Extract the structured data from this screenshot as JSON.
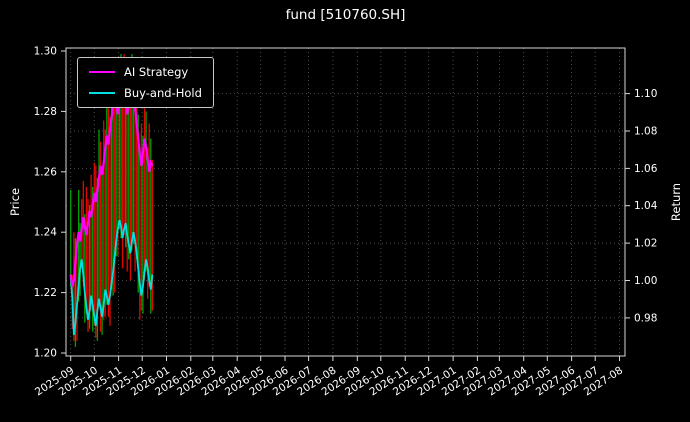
{
  "colors": {
    "background": "#000000",
    "text": "#ffffff",
    "grid": "#5f5f5f",
    "spine": "#d9d9d9",
    "ai_strategy": "#ff00ff",
    "buy_and_hold": "#00e0e0",
    "candle_up": "#00a000",
    "candle_down": "#e10600"
  },
  "chart_data": {
    "type": "line",
    "title": "fund [510760.SH]",
    "xlabel": "",
    "ylabel_left": "Price",
    "ylabel_right": "Return",
    "grid": true,
    "legend_position": "upper left",
    "axes": {
      "left": {
        "label": "Price",
        "ticks": [
          1.2,
          1.22,
          1.24,
          1.26,
          1.28,
          1.3
        ],
        "lim": [
          1.199,
          1.301
        ]
      },
      "right": {
        "label": "Return",
        "ticks": [
          0.98,
          1.0,
          1.02,
          1.04,
          1.06,
          1.08,
          1.1
        ],
        "lim": [
          0.9596,
          1.1244
        ]
      },
      "x": {
        "tick_labels": [
          "2025-09",
          "2025-10",
          "2025-11",
          "2025-12",
          "2026-01",
          "2026-02",
          "2026-03",
          "2026-04",
          "2026-05",
          "2026-06",
          "2026-07",
          "2026-08",
          "2026-09",
          "2026-10",
          "2026-11",
          "2026-12",
          "2027-01",
          "2027-02",
          "2027-03",
          "2027-04",
          "2027-05",
          "2027-06",
          "2027-07",
          "2027-08"
        ],
        "tick_days": [
          0,
          30,
          61,
          91,
          122,
          153,
          181,
          212,
          242,
          273,
          303,
          334,
          365,
          395,
          426,
          456,
          487,
          518,
          546,
          577,
          607,
          638,
          668,
          699
        ],
        "lim": [
          -6,
          706
        ]
      }
    },
    "x_days": [
      0,
      2,
      4,
      6,
      8,
      10,
      12,
      14,
      16,
      18,
      20,
      22,
      24,
      26,
      28,
      30,
      32,
      34,
      36,
      38,
      40,
      42,
      44,
      46,
      48,
      50,
      52,
      54,
      56,
      58,
      60,
      62,
      64,
      66,
      68,
      70,
      72,
      74,
      76,
      78,
      80,
      82,
      84,
      86,
      88,
      90,
      92,
      94,
      96,
      98,
      100,
      102,
      104
    ],
    "series": [
      {
        "name": "AI Strategy",
        "color": "#ff00ff",
        "axis": "price",
        "values": [
          1.226,
          1.222,
          1.224,
          1.23,
          1.236,
          1.24,
          1.237,
          1.241,
          1.245,
          1.242,
          1.239,
          1.243,
          1.247,
          1.245,
          1.249,
          1.253,
          1.25,
          1.254,
          1.258,
          1.262,
          1.259,
          1.263,
          1.268,
          1.272,
          1.269,
          1.274,
          1.278,
          1.282,
          1.286,
          1.283,
          1.279,
          1.283,
          1.287,
          1.29,
          1.287,
          1.283,
          1.279,
          1.283,
          1.287,
          1.29,
          1.286,
          1.281,
          1.276,
          1.271,
          1.266,
          1.262,
          1.266,
          1.271,
          1.268,
          1.264,
          1.26,
          1.263,
          1.262
        ]
      },
      {
        "name": "Buy-and-Hold",
        "color": "#00e0e0",
        "axis": "price",
        "values": [
          1.226,
          1.218,
          1.206,
          1.21,
          1.216,
          1.222,
          1.228,
          1.231,
          1.226,
          1.22,
          1.215,
          1.211,
          1.214,
          1.219,
          1.216,
          1.212,
          1.209,
          1.214,
          1.218,
          1.215,
          1.212,
          1.216,
          1.221,
          1.219,
          1.216,
          1.219,
          1.223,
          1.227,
          1.232,
          1.237,
          1.241,
          1.244,
          1.242,
          1.238,
          1.241,
          1.243,
          1.239,
          1.236,
          1.233,
          1.237,
          1.24,
          1.237,
          1.233,
          1.228,
          1.223,
          1.219,
          1.222,
          1.227,
          1.231,
          1.228,
          1.224,
          1.221,
          1.226
        ]
      }
    ],
    "candles": {
      "color_key": {
        "r": "#e10600",
        "g": "#00a000"
      },
      "high": [
        1.254,
        1.226,
        1.24,
        1.238,
        1.238,
        1.254,
        1.243,
        1.251,
        1.257,
        1.246,
        1.255,
        1.251,
        1.249,
        1.259,
        1.255,
        1.263,
        1.262,
        1.258,
        1.274,
        1.27,
        1.261,
        1.277,
        1.274,
        1.282,
        1.281,
        1.278,
        1.294,
        1.29,
        1.288,
        1.297,
        1.285,
        1.293,
        1.299,
        1.294,
        1.299,
        1.291,
        1.281,
        1.297,
        1.293,
        1.299,
        1.298,
        1.285,
        1.292,
        1.279,
        1.268,
        1.276,
        1.272,
        1.281,
        1.28,
        1.268,
        1.276,
        1.271,
        1.264
      ],
      "low": [
        1.222,
        1.208,
        1.204,
        1.202,
        1.204,
        1.217,
        1.219,
        1.228,
        1.222,
        1.21,
        1.213,
        1.207,
        1.208,
        1.214,
        1.207,
        1.209,
        1.205,
        1.204,
        1.216,
        1.207,
        1.206,
        1.211,
        1.212,
        1.216,
        1.212,
        1.209,
        1.221,
        1.219,
        1.22,
        1.232,
        1.232,
        1.241,
        1.238,
        1.228,
        1.239,
        1.235,
        1.227,
        1.231,
        1.224,
        1.234,
        1.236,
        1.227,
        1.231,
        1.22,
        1.211,
        1.214,
        1.213,
        1.224,
        1.227,
        1.218,
        1.222,
        1.213,
        1.214
      ],
      "color": [
        "g",
        "r",
        "r",
        "g",
        "r",
        "g",
        "g",
        "r",
        "r",
        "g",
        "r",
        "r",
        "g",
        "r",
        "g",
        "r",
        "r",
        "g",
        "g",
        "r",
        "g",
        "r",
        "r",
        "g",
        "r",
        "r",
        "g",
        "g",
        "r",
        "g",
        "r",
        "g",
        "g",
        "r",
        "r",
        "g",
        "r",
        "g",
        "r",
        "g",
        "g",
        "r",
        "r",
        "g",
        "r",
        "r",
        "g",
        "r",
        "g",
        "r",
        "r",
        "g",
        "r"
      ]
    }
  }
}
